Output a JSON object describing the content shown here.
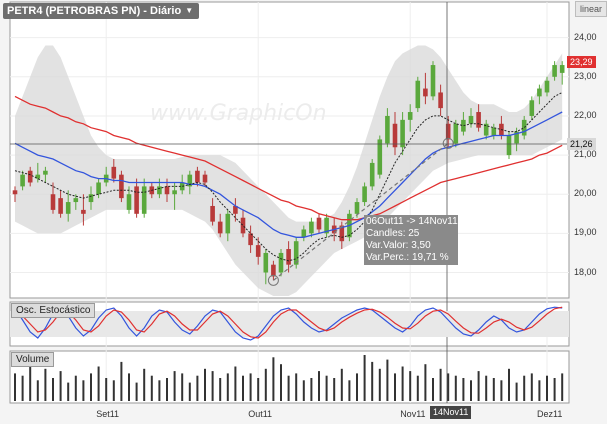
{
  "header": {
    "title": "PETR4 (PETROBRAS  PN) - Diário",
    "scale_label": "linear"
  },
  "watermark": "www.GraphicOn",
  "panels": {
    "oscillator_label": "Osc. Estocástico",
    "volume_label": "Volume"
  },
  "tooltip": {
    "range": "06Out11 -> 14Nov11",
    "candles": "Candles: 25",
    "var_valor": "Var.Valor:  3,50",
    "var_perc": "Var.Perc.:  19,71 %"
  },
  "price_tags": {
    "last": "23,29",
    "crosshair": "21,26"
  },
  "crosshair_date": "14Nov11",
  "colors": {
    "up": "#5aa83c",
    "down": "#b83a3a",
    "ma_red": "#e03030",
    "ma_blue": "#3355dd",
    "ma_black": "#222222",
    "band": "#d8d8d8"
  },
  "chart_data": {
    "type": "candlestick",
    "y_ticks": [
      "24,00",
      "23,00",
      "22,00",
      "21,00",
      "20,00",
      "19,00",
      "18,00"
    ],
    "ylim": [
      17.4,
      24.4
    ],
    "x_ticks": [
      "Set11",
      "Out11",
      "Nov11",
      "Dez11"
    ],
    "x_tick_index": [
      12,
      32,
      52,
      70
    ],
    "candles": [
      [
        20.1,
        20.2,
        19.8,
        20.0
      ],
      [
        20.2,
        20.6,
        20.1,
        20.5
      ],
      [
        20.6,
        20.7,
        20.2,
        20.3
      ],
      [
        20.4,
        20.8,
        20.3,
        20.5
      ],
      [
        20.5,
        20.7,
        20.3,
        20.6
      ],
      [
        20.0,
        20.3,
        19.5,
        19.6
      ],
      [
        19.9,
        20.1,
        19.4,
        19.5
      ],
      [
        19.5,
        20.1,
        19.3,
        19.8
      ],
      [
        19.8,
        20.0,
        19.6,
        19.9
      ],
      [
        19.6,
        20.0,
        19.2,
        19.5
      ],
      [
        19.8,
        20.2,
        19.6,
        20.0
      ],
      [
        20.0,
        20.4,
        19.9,
        20.3
      ],
      [
        20.3,
        20.7,
        20.2,
        20.5
      ],
      [
        20.7,
        20.9,
        20.3,
        20.4
      ],
      [
        20.5,
        20.6,
        19.8,
        19.9
      ],
      [
        19.6,
        20.2,
        19.5,
        20.0
      ],
      [
        20.2,
        20.4,
        19.4,
        19.5
      ],
      [
        19.5,
        20.4,
        19.4,
        20.2
      ],
      [
        20.2,
        20.3,
        19.9,
        20.0
      ],
      [
        20.0,
        20.4,
        19.9,
        20.2
      ],
      [
        20.2,
        20.4,
        19.8,
        20.0
      ],
      [
        20.0,
        20.3,
        19.6,
        20.1
      ],
      [
        20.1,
        20.5,
        20.0,
        20.3
      ],
      [
        20.2,
        20.6,
        20.0,
        20.5
      ],
      [
        20.6,
        20.7,
        20.2,
        20.3
      ],
      [
        20.5,
        20.6,
        20.2,
        20.3
      ],
      [
        19.7,
        19.9,
        19.2,
        19.3
      ],
      [
        19.3,
        19.5,
        18.9,
        19.0
      ],
      [
        19.0,
        19.6,
        18.8,
        19.5
      ],
      [
        19.7,
        19.9,
        19.3,
        19.5
      ],
      [
        19.4,
        19.6,
        18.9,
        19.0
      ],
      [
        19.0,
        19.2,
        18.5,
        18.7
      ],
      [
        18.7,
        18.9,
        18.2,
        18.4
      ],
      [
        18.0,
        18.6,
        17.7,
        18.5
      ],
      [
        18.2,
        18.3,
        17.8,
        17.9
      ],
      [
        18.0,
        18.6,
        17.9,
        18.5
      ],
      [
        18.6,
        18.8,
        18.0,
        18.2
      ],
      [
        18.2,
        18.9,
        18.1,
        18.8
      ],
      [
        18.9,
        19.2,
        18.8,
        19.1
      ],
      [
        19.0,
        19.4,
        18.9,
        19.3
      ],
      [
        19.4,
        19.5,
        19.0,
        19.1
      ],
      [
        19.0,
        19.5,
        18.9,
        19.4
      ],
      [
        19.2,
        19.4,
        18.8,
        19.0
      ],
      [
        19.2,
        19.3,
        18.6,
        18.8
      ],
      [
        18.9,
        19.6,
        18.8,
        19.5
      ],
      [
        19.5,
        19.9,
        19.4,
        19.8
      ],
      [
        19.8,
        20.3,
        19.7,
        20.2
      ],
      [
        20.2,
        20.9,
        20.1,
        20.8
      ],
      [
        20.5,
        21.5,
        20.4,
        21.4
      ],
      [
        21.3,
        22.2,
        21.2,
        22.0
      ],
      [
        21.8,
        22.1,
        21.0,
        21.2
      ],
      [
        21.2,
        22.1,
        21.0,
        21.9
      ],
      [
        21.9,
        22.3,
        21.6,
        22.1
      ],
      [
        22.2,
        23.0,
        22.1,
        22.9
      ],
      [
        22.7,
        23.1,
        22.3,
        22.5
      ],
      [
        22.5,
        23.4,
        22.4,
        23.3
      ],
      [
        22.6,
        22.8,
        22.0,
        22.2
      ],
      [
        21.8,
        22.0,
        21.2,
        21.4
      ],
      [
        21.3,
        21.9,
        21.2,
        21.8
      ],
      [
        21.6,
        22.1,
        21.5,
        21.9
      ],
      [
        21.8,
        22.2,
        21.7,
        22.0
      ],
      [
        22.1,
        22.3,
        21.6,
        21.7
      ],
      [
        21.5,
        21.9,
        21.4,
        21.8
      ],
      [
        21.5,
        21.8,
        21.4,
        21.7
      ],
      [
        21.8,
        22.0,
        21.4,
        21.5
      ],
      [
        21.0,
        21.6,
        20.9,
        21.5
      ],
      [
        21.3,
        21.7,
        21.1,
        21.6
      ],
      [
        21.5,
        22.0,
        21.4,
        21.9
      ],
      [
        22.0,
        22.5,
        21.9,
        22.4
      ],
      [
        22.5,
        22.8,
        22.3,
        22.7
      ],
      [
        22.6,
        23.0,
        22.5,
        22.9
      ],
      [
        23.0,
        23.4,
        22.9,
        23.3
      ],
      [
        23.1,
        23.4,
        22.8,
        23.3
      ]
    ],
    "ma_red": [
      22.5,
      22.4,
      22.3,
      22.25,
      22.2,
      22.1,
      22.0,
      21.95,
      21.85,
      21.8,
      21.7,
      21.65,
      21.6,
      21.5,
      21.45,
      21.4,
      21.3,
      21.25,
      21.2,
      21.15,
      21.1,
      21.05,
      21.0,
      20.95,
      20.9,
      20.85,
      20.75,
      20.65,
      20.55,
      20.45,
      20.35,
      20.25,
      20.15,
      20.05,
      19.95,
      19.85,
      19.8,
      19.7,
      19.65,
      19.6,
      19.5,
      19.45,
      19.4,
      19.35,
      19.35,
      19.35,
      19.4,
      19.45,
      19.5,
      19.6,
      19.7,
      19.8,
      19.9,
      20.0,
      20.1,
      20.2,
      20.3,
      20.35,
      20.4,
      20.45,
      20.5,
      20.55,
      20.6,
      20.65,
      20.7,
      20.75,
      20.8,
      20.85,
      20.9,
      21.0,
      21.05,
      21.15,
      21.25
    ],
    "ma_blue": [
      21.3,
      21.2,
      21.1,
      21.0,
      20.95,
      20.9,
      20.8,
      20.7,
      20.6,
      20.55,
      20.45,
      20.4,
      20.4,
      20.35,
      20.35,
      20.3,
      20.3,
      20.3,
      20.3,
      20.3,
      20.3,
      20.3,
      20.3,
      20.25,
      20.25,
      20.2,
      20.1,
      20.0,
      19.85,
      19.7,
      19.6,
      19.5,
      19.4,
      19.25,
      19.1,
      19.0,
      18.95,
      18.9,
      18.9,
      18.95,
      19.0,
      19.05,
      19.1,
      19.15,
      19.2,
      19.3,
      19.4,
      19.55,
      19.7,
      19.9,
      20.1,
      20.3,
      20.5,
      20.7,
      20.9,
      21.05,
      21.15,
      21.2,
      21.25,
      21.3,
      21.35,
      21.4,
      21.45,
      21.5,
      21.5,
      21.5,
      21.55,
      21.6,
      21.7,
      21.8,
      21.9,
      22.0,
      22.1
    ],
    "ma_black": [
      20.6,
      20.55,
      20.5,
      20.4,
      20.3,
      20.2,
      20.1,
      20.0,
      19.95,
      19.9,
      19.95,
      20.0,
      20.05,
      20.1,
      20.1,
      20.1,
      20.05,
      20.05,
      20.1,
      20.15,
      20.2,
      20.2,
      20.2,
      20.25,
      20.3,
      20.25,
      20.05,
      19.8,
      19.6,
      19.4,
      19.2,
      19.0,
      18.8,
      18.6,
      18.45,
      18.35,
      18.3,
      18.35,
      18.5,
      18.7,
      18.85,
      18.9,
      18.95,
      18.9,
      18.95,
      19.1,
      19.3,
      19.6,
      20.0,
      20.4,
      20.8,
      21.1,
      21.4,
      21.7,
      21.9,
      22.0,
      22.0,
      21.9,
      21.8,
      21.75,
      21.8,
      21.8,
      21.75,
      21.7,
      21.65,
      21.6,
      21.6,
      21.7,
      21.9,
      22.1,
      22.3,
      22.5,
      22.6
    ],
    "band_upper": [
      22.0,
      22.5,
      23.0,
      23.5,
      23.8,
      23.8,
      23.5,
      23.0,
      22.5,
      22.0,
      21.5,
      21.2,
      21.0,
      20.9,
      20.9,
      20.9,
      20.9,
      20.9,
      20.9,
      20.9,
      20.9,
      20.9,
      20.95,
      21.0,
      21.0,
      21.0,
      21.0,
      21.0,
      20.9,
      20.8,
      20.6,
      20.4,
      20.2,
      20.0,
      19.8,
      19.6,
      19.4,
      19.3,
      19.3,
      19.3,
      19.3,
      19.4,
      19.5,
      19.8,
      20.2,
      20.7,
      21.3,
      21.9,
      22.5,
      23.0,
      23.4,
      23.6,
      23.7,
      23.8,
      23.8,
      23.7,
      23.5,
      23.2,
      22.9,
      22.6,
      22.4,
      22.3,
      22.3,
      22.3,
      22.2,
      22.1,
      22.1,
      22.2,
      22.4,
      22.7,
      23.0,
      23.3,
      23.6
    ],
    "band_lower": [
      19.3,
      19.2,
      19.1,
      19.0,
      19.0,
      19.0,
      19.0,
      19.1,
      19.2,
      19.3,
      19.4,
      19.5,
      19.6,
      19.6,
      19.6,
      19.6,
      19.6,
      19.6,
      19.6,
      19.6,
      19.6,
      19.6,
      19.6,
      19.5,
      19.4,
      19.3,
      19.1,
      18.8,
      18.5,
      18.2,
      18.0,
      17.8,
      17.6,
      17.5,
      17.4,
      17.4,
      17.4,
      17.5,
      17.7,
      17.9,
      18.1,
      18.3,
      18.5,
      18.6,
      18.7,
      18.8,
      18.9,
      19.0,
      19.2,
      19.4,
      19.6,
      19.8,
      20.0,
      20.2,
      20.4,
      20.6,
      20.7,
      20.8,
      20.85,
      20.9,
      20.95,
      21.0,
      21.0,
      21.0,
      21.0,
      21.0,
      21.0,
      21.0,
      21.0,
      21.1,
      21.2,
      21.3,
      21.4
    ],
    "stochastic_k": [
      90,
      60,
      30,
      15,
      40,
      75,
      90,
      70,
      40,
      20,
      35,
      65,
      85,
      90,
      70,
      40,
      20,
      40,
      70,
      85,
      80,
      55,
      35,
      25,
      45,
      70,
      85,
      80,
      55,
      30,
      15,
      10,
      20,
      45,
      70,
      85,
      90,
      75,
      55,
      40,
      30,
      35,
      50,
      65,
      75,
      85,
      90,
      85,
      70,
      55,
      40,
      30,
      45,
      70,
      85,
      90,
      80,
      60,
      40,
      25,
      20,
      35,
      55,
      70,
      60,
      40,
      30,
      35,
      55,
      75,
      88,
      92,
      90
    ],
    "stochastic_d": [
      80,
      70,
      50,
      30,
      35,
      55,
      80,
      80,
      60,
      35,
      30,
      45,
      70,
      85,
      80,
      60,
      35,
      30,
      50,
      75,
      82,
      70,
      50,
      35,
      35,
      55,
      75,
      82,
      70,
      50,
      30,
      18,
      15,
      30,
      55,
      75,
      85,
      85,
      70,
      55,
      40,
      33,
      40,
      55,
      67,
      77,
      85,
      87,
      80,
      67,
      52,
      40,
      38,
      52,
      70,
      82,
      85,
      75,
      57,
      40,
      28,
      27,
      40,
      55,
      62,
      55,
      42,
      35,
      42,
      58,
      75,
      88,
      92
    ],
    "volume": [
      60,
      55,
      80,
      45,
      70,
      50,
      65,
      40,
      55,
      45,
      60,
      75,
      50,
      45,
      85,
      60,
      40,
      70,
      55,
      45,
      50,
      65,
      60,
      40,
      55,
      70,
      65,
      50,
      60,
      75,
      55,
      60,
      50,
      70,
      95,
      80,
      55,
      60,
      45,
      50,
      65,
      55,
      50,
      70,
      45,
      60,
      100,
      85,
      70,
      90,
      60,
      75,
      65,
      55,
      80,
      50,
      70,
      60,
      55,
      50,
      45,
      65,
      55,
      50,
      45,
      70,
      40,
      55,
      60,
      45,
      55,
      50,
      60
    ]
  }
}
